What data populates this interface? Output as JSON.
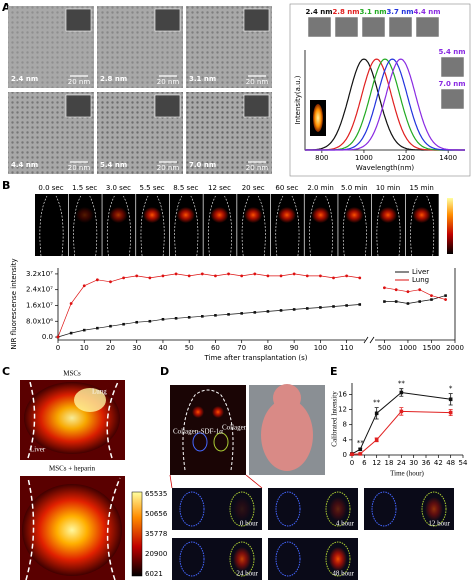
{
  "panels": {
    "a": "A",
    "b": "B",
    "c": "C",
    "d": "D",
    "e": "E"
  },
  "tem": {
    "labels": [
      "2.4 nm",
      "2.8 nm",
      "3.1 nm",
      "4.4 nm",
      "5.4 nm",
      "7.0 nm"
    ],
    "scale_bar": "20 nm"
  },
  "strip": {
    "times": [
      "0.0 sec",
      "1.5 sec",
      "3.0 sec",
      "5.5 sec",
      "8.5 sec",
      "12 sec",
      "20 sec",
      "60 sec",
      "2.0 min",
      "5.0 min",
      "10 min",
      "15 min"
    ]
  },
  "panel_c": {
    "title_top": "MSCs",
    "lung": "Lung",
    "liver": "Liver",
    "title_bottom": "MSCs + heparin",
    "colorbar": [
      65535,
      50656,
      35778,
      20900,
      6021
    ]
  },
  "panel_d": {
    "left_label": "Collagen-SDF-1α",
    "right_label": "Collagen",
    "times": [
      "0 hour",
      "4 hour",
      "12 hour",
      "24 hour",
      "48 hour"
    ]
  },
  "chart_data": [
    {
      "type": "spectrum",
      "xlabel": "Wavelength(nm)",
      "ylabel": "Intensity(a.u.)",
      "xlim": [
        720,
        1480
      ],
      "xticks": [
        800,
        1000,
        1200,
        1400
      ],
      "ylim": [
        0,
        1.1
      ],
      "series": [
        {
          "name": "2.4 nm",
          "color": "#111111",
          "peak": 1000
        },
        {
          "name": "2.8 nm",
          "color": "#e02020",
          "peak": 1060
        },
        {
          "name": "3.1 nm",
          "color": "#22aa22",
          "peak": 1100
        },
        {
          "name": "3.7 nm",
          "color": "#2233dd",
          "peak": 1135
        },
        {
          "name": "4.4 nm",
          "color": "#8a2be2",
          "peak": 1175
        }
      ],
      "extra_labels": [
        "5.4 nm",
        "7.0 nm"
      ]
    },
    {
      "type": "line",
      "xlabel": "Time after transplantation (s)",
      "ylabel": "NIR fluorescense intensity",
      "xlim": [
        0,
        117
      ],
      "xticks": [
        0,
        10,
        20,
        30,
        40,
        50,
        60,
        70,
        80,
        90,
        100,
        110
      ],
      "xlim_right": [
        300,
        2000
      ],
      "xticks_right": [
        500,
        1000,
        1500,
        2000
      ],
      "ylim": [
        -1500000,
        35000000
      ],
      "yticks": [
        {
          "value": 0,
          "label": "0.0"
        },
        {
          "value": 8000000,
          "label": "8.0x10⁶"
        },
        {
          "value": 16000000,
          "label": "1.6x10⁷"
        },
        {
          "value": 24000000,
          "label": "2.4x10⁷"
        },
        {
          "value": 32000000,
          "label": "3.2x10⁷"
        }
      ],
      "legend": "upper right",
      "x": [
        0,
        5,
        10,
        15,
        20,
        25,
        30,
        35,
        40,
        45,
        50,
        55,
        60,
        65,
        70,
        75,
        80,
        85,
        90,
        95,
        100,
        105,
        110,
        115
      ],
      "x_right": [
        500,
        750,
        1000,
        1250,
        1500,
        1800
      ],
      "series": [
        {
          "name": "Liver",
          "color": "#111111",
          "values": [
            0,
            2000000,
            3500000,
            4500000,
            5500000,
            6500000,
            7500000,
            8000000,
            9000000,
            9500000,
            10000000,
            10500000,
            11000000,
            11500000,
            12000000,
            12500000,
            13000000,
            13500000,
            14000000,
            14500000,
            15000000,
            15500000,
            16000000,
            16500000
          ],
          "values_right": [
            18000000,
            18000000,
            17000000,
            18000000,
            19000000,
            21000000
          ]
        },
        {
          "name": "Lung",
          "color": "#dd1111",
          "values": [
            0,
            17000000,
            26000000,
            29000000,
            28000000,
            30000000,
            31000000,
            30000000,
            31000000,
            32000000,
            31000000,
            32000000,
            31000000,
            32000000,
            31000000,
            32000000,
            31000000,
            31000000,
            32000000,
            31000000,
            31000000,
            30000000,
            31000000,
            30000000
          ],
          "values_right": [
            25000000,
            24000000,
            23000000,
            24000000,
            21000000,
            19000000
          ]
        }
      ]
    },
    {
      "type": "errorline",
      "xlabel": "Time (hour)",
      "ylabel": "Calibrated Intensity",
      "xlim": [
        0,
        54
      ],
      "xticks": [
        0,
        6,
        12,
        18,
        24,
        30,
        36,
        42,
        48,
        54
      ],
      "ylim": [
        0,
        19
      ],
      "yticks": [
        0,
        4,
        8,
        12,
        16
      ],
      "x": [
        0,
        4,
        12,
        24,
        48
      ],
      "series": [
        {
          "color": "#111111",
          "values": [
            0.3,
            1.5,
            11,
            16.5,
            14.7
          ],
          "errors": [
            0.2,
            0.3,
            1.5,
            1,
            1.5
          ],
          "annotations": [
            null,
            "**",
            "**",
            "**",
            "*"
          ]
        },
        {
          "color": "#e02020",
          "values": [
            0.2,
            0.3,
            4,
            11.5,
            11.2
          ],
          "errors": [
            0.1,
            0.1,
            0.5,
            1,
            0.8
          ]
        }
      ]
    }
  ]
}
